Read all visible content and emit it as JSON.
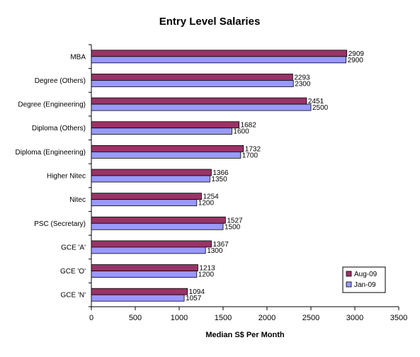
{
  "chart_data": {
    "type": "bar",
    "orientation": "horizontal",
    "title": "Entry Level Salaries",
    "xlabel": "Median S$ Per Month",
    "ylabel": "",
    "xlim": [
      0,
      3500
    ],
    "x_ticks": [
      0,
      500,
      1000,
      1500,
      2000,
      2500,
      3000,
      3500
    ],
    "grid": false,
    "legend_position": "bottom-right",
    "categories": [
      "MBA",
      "Degree (Others)",
      "Degree (Engineering)",
      "Diploma (Others)",
      "Diploma (Engineering)",
      "Higher Nitec",
      "Nitec",
      "PSC (Secretary)",
      "GCE 'A'",
      "GCE 'O'",
      "GCE 'N'"
    ],
    "series": [
      {
        "name": "Aug-09",
        "color": "#993366",
        "values": [
          2909,
          2293,
          2451,
          1682,
          1732,
          1366,
          1254,
          1527,
          1367,
          1213,
          1094
        ]
      },
      {
        "name": "Jan-09",
        "color": "#9999ff",
        "values": [
          2900,
          2300,
          2500,
          1600,
          1700,
          1350,
          1200,
          1500,
          1300,
          1200,
          1057
        ]
      }
    ]
  }
}
